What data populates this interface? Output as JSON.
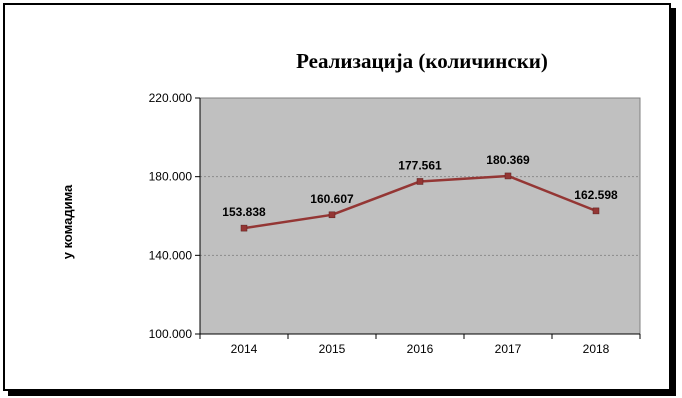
{
  "chart_data": {
    "type": "line",
    "title": "Реализација (количински)",
    "xlabel": "",
    "ylabel": "у комадима",
    "categories": [
      "2014",
      "2015",
      "2016",
      "2017",
      "2018"
    ],
    "series": [
      {
        "values": [
          153838,
          160607,
          177561,
          180369,
          162598
        ]
      }
    ],
    "data_labels": [
      "153.838",
      "160.607",
      "177.561",
      "180.369",
      "162.598"
    ],
    "y_ticks": [
      {
        "value": 100000,
        "label": "100.000"
      },
      {
        "value": 140000,
        "label": "140.000"
      },
      {
        "value": 180000,
        "label": "180.000"
      },
      {
        "value": 220000,
        "label": "220.000"
      }
    ],
    "ylim": [
      100000,
      220000
    ],
    "grid": true,
    "legend": "none",
    "colors": {
      "line": "#943634",
      "plot_bg": "#c0c0c0",
      "grid": "#8a8a8a"
    }
  }
}
